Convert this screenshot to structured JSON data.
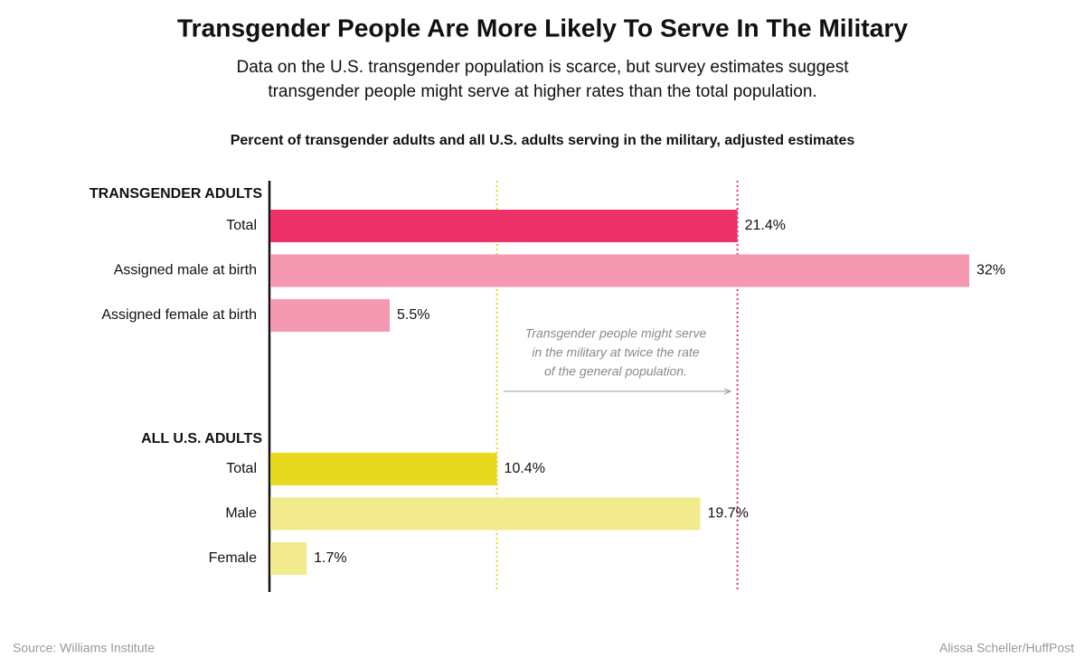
{
  "chart_data": {
    "type": "bar",
    "orientation": "horizontal",
    "title": "Transgender People Are More Likely To Serve In The Military",
    "subtitle": [
      "Data on the U.S. transgender population is scarce, but survey estimates suggest",
      "transgender people might serve at higher rates than the total population."
    ],
    "chart_title": "Percent of transgender adults and all U.S. adults serving in the military, adjusted estimates",
    "series": [
      {
        "name": "TRANSGENDER ADULTS",
        "categories": [
          "Total",
          "Assigned male at birth",
          "Assigned female at birth"
        ],
        "values": [
          21.4,
          32,
          5.5
        ],
        "value_labels": [
          "21.4%",
          "32%",
          "5.5%"
        ],
        "colors": [
          "#ee3168",
          "#f598b2",
          "#f598b2"
        ]
      },
      {
        "name": "ALL U.S. ADULTS",
        "categories": [
          "Total",
          "Male",
          "Female"
        ],
        "values": [
          10.4,
          19.7,
          1.7
        ],
        "value_labels": [
          "10.4%",
          "19.7%",
          "1.7%"
        ],
        "colors": [
          "#e6d91e",
          "#f2eb8e",
          "#f2eb8e"
        ]
      }
    ],
    "annotation": [
      "Transgender people might serve",
      "in the military at twice the rate",
      "of the general  population."
    ],
    "source": "Source: Williams Institute",
    "credit": "Alissa Scheller/HuffPost"
  }
}
